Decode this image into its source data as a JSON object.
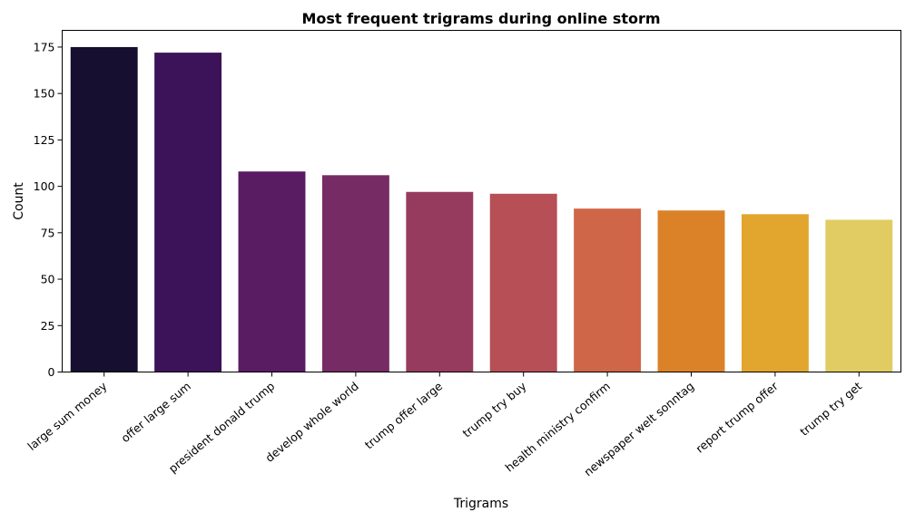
{
  "chart_data": {
    "type": "bar",
    "title": "Most frequent trigrams during online storm",
    "xlabel": "Trigrams",
    "ylabel": "Count",
    "ylim": [
      0,
      184
    ],
    "yticks": [
      0,
      25,
      50,
      75,
      100,
      125,
      150,
      175
    ],
    "grid": false,
    "categories": [
      "large sum money",
      "offer large sum",
      "president donald trump",
      "develop whole world",
      "trump offer large",
      "trump try buy",
      "health ministry confirm",
      "newspaper welt sonntag",
      "report trump offer",
      "trump try get"
    ],
    "values": [
      175,
      172,
      108,
      106,
      97,
      96,
      88,
      87,
      85,
      82
    ],
    "colors": [
      "#160f30",
      "#3c1358",
      "#591c63",
      "#772b65",
      "#973b5e",
      "#b64f56",
      "#cf6647",
      "#db8128",
      "#e2a52d",
      "#e0cc62"
    ]
  }
}
